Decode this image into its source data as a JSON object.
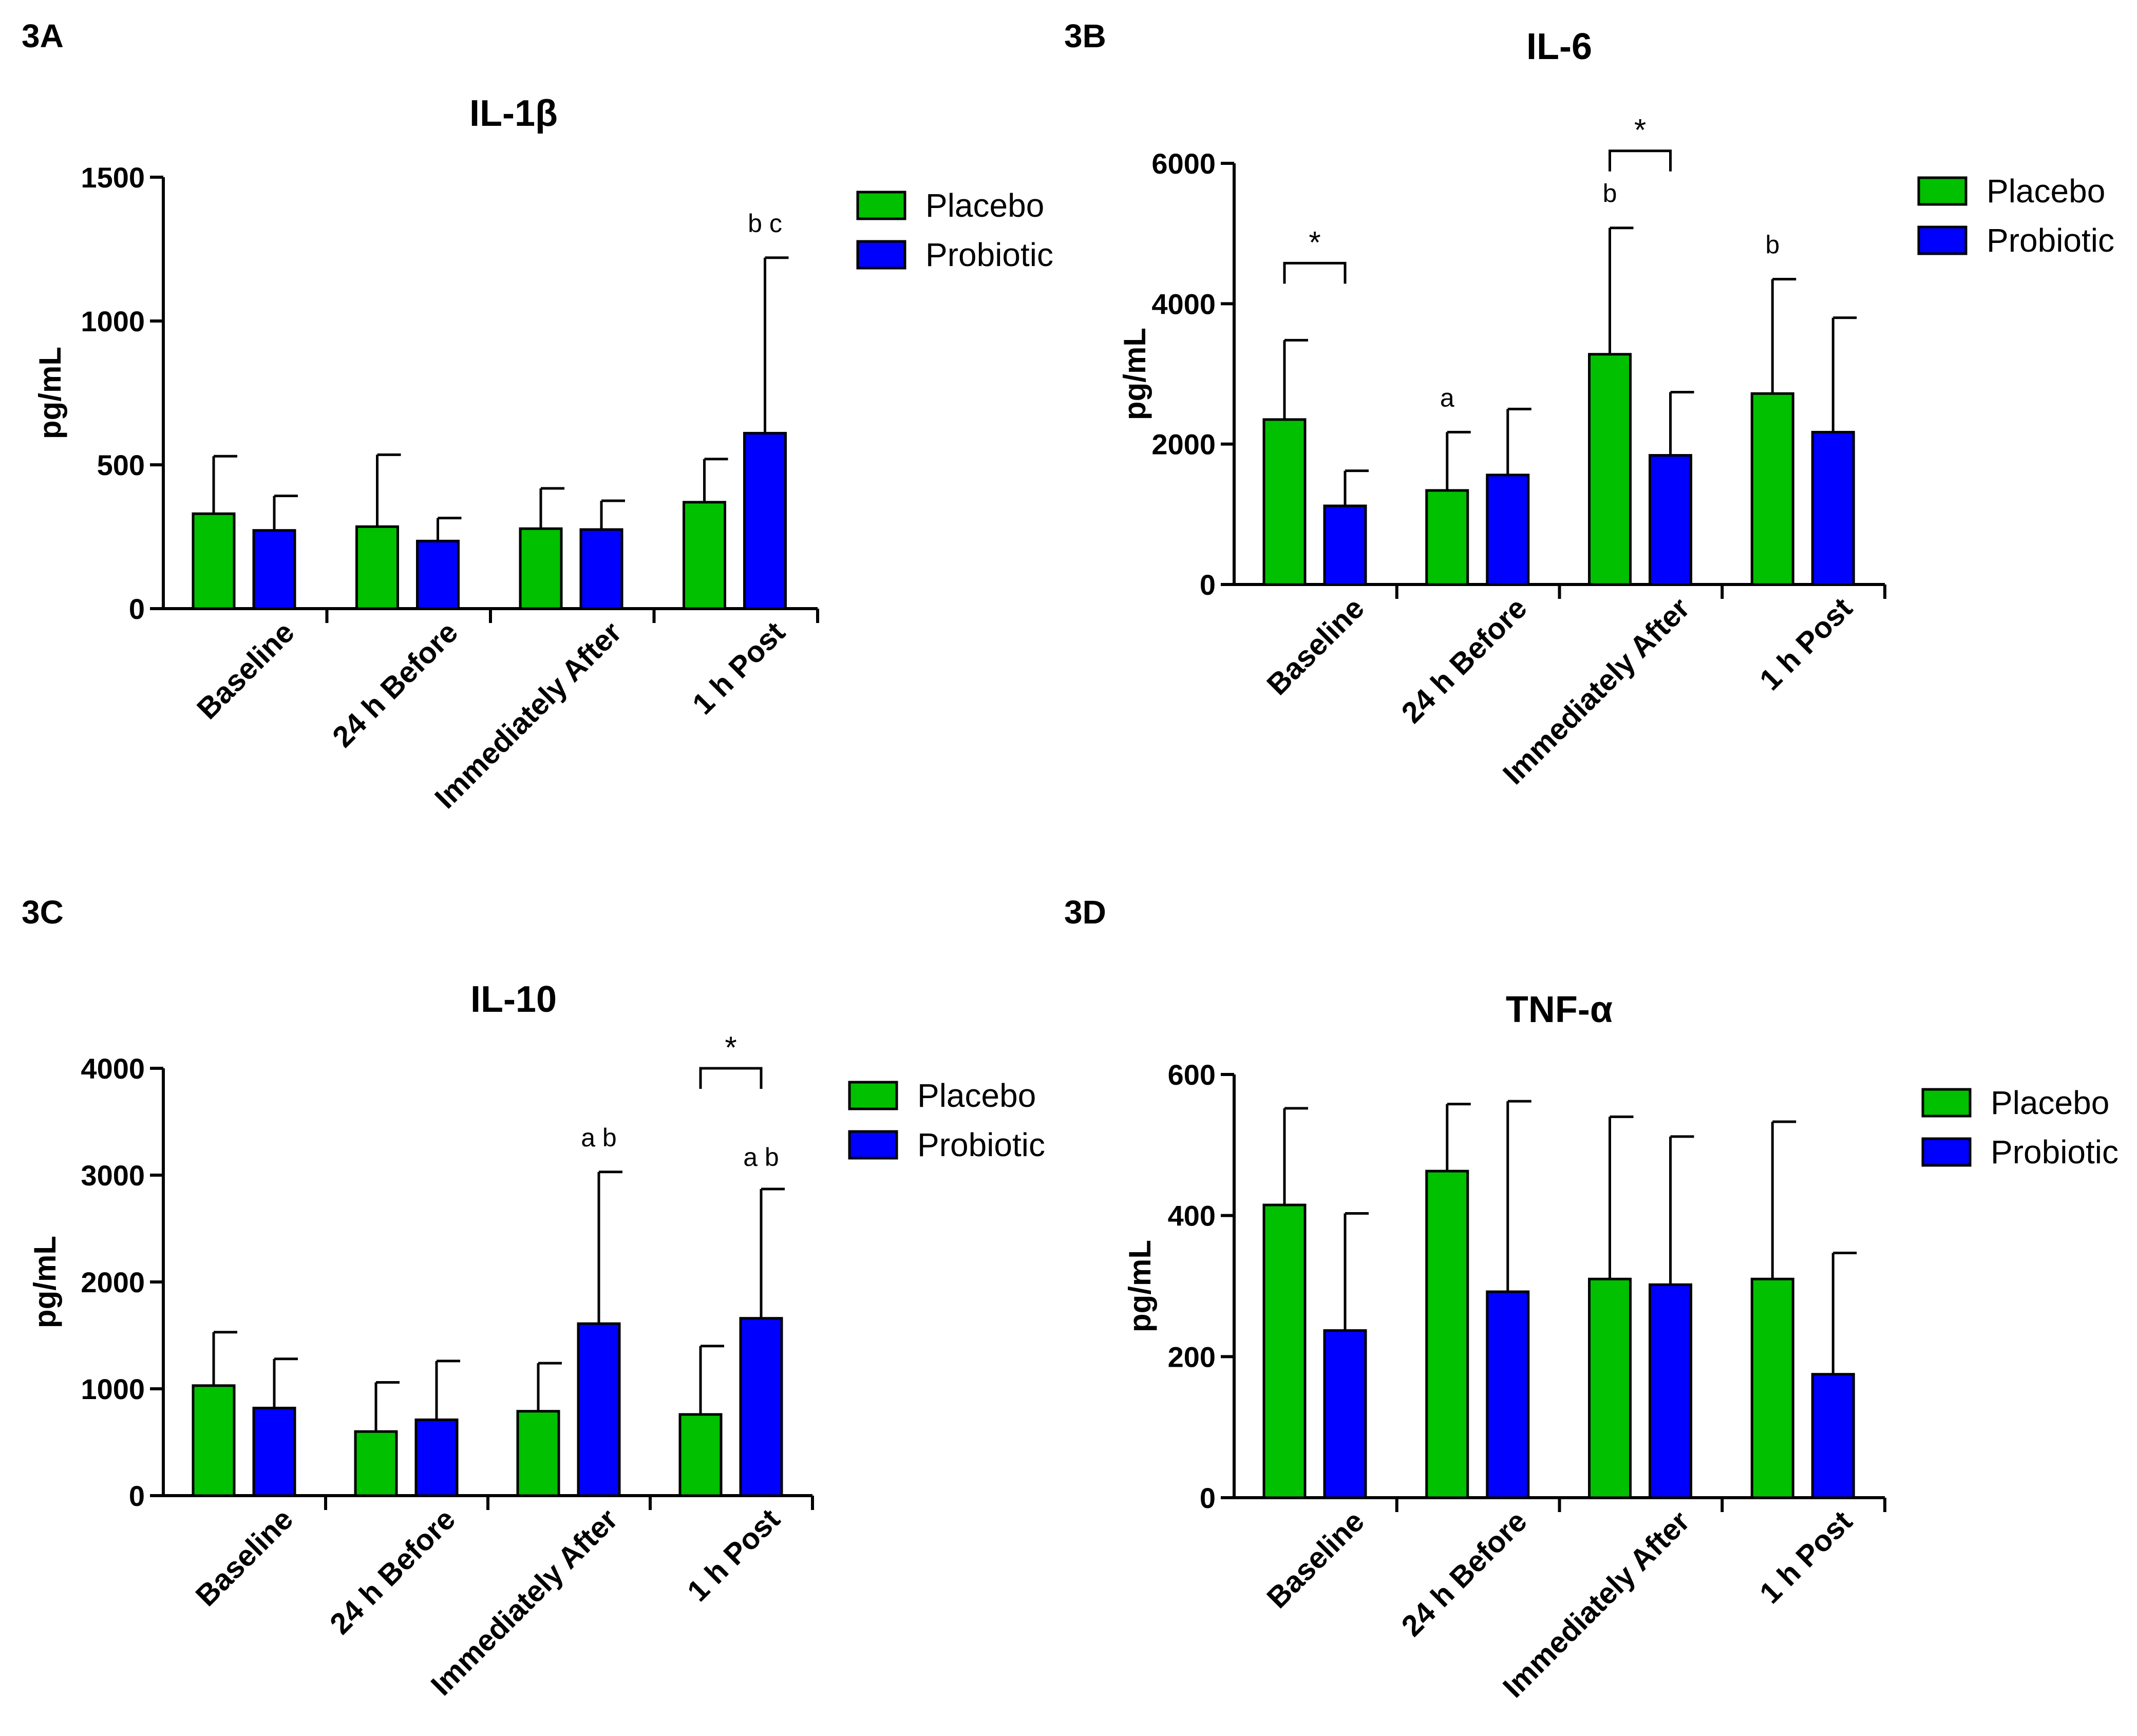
{
  "colors": {
    "placebo": "#00c000",
    "probiotic": "#0000ff",
    "axis": "#000000"
  },
  "chart_data": [
    {
      "panel": "3A",
      "type": "bar",
      "title": "IL-1β",
      "ylabel": "pg/mL",
      "ylim": [
        0,
        1500
      ],
      "yticks": [
        "0",
        "500",
        "1000",
        "1500"
      ],
      "categories": [
        "Baseline",
        "24 h Before",
        "Immediately After",
        "1 h Post"
      ],
      "series": [
        {
          "name": "Placebo",
          "values": [
            330,
            285,
            278,
            370
          ],
          "errors": [
            200,
            250,
            140,
            150
          ]
        },
        {
          "name": "Probiotic",
          "values": [
            272,
            235,
            275,
            610
          ],
          "errors": [
            120,
            80,
            100,
            610
          ]
        }
      ],
      "legend": [
        "Placebo",
        "Probiotic"
      ],
      "annotations": [
        {
          "category": 3,
          "series": 1,
          "text": "b c"
        }
      ],
      "brackets": []
    },
    {
      "panel": "3B",
      "type": "bar",
      "title": "IL-6",
      "ylabel": "pg/mL",
      "ylim": [
        0,
        6000
      ],
      "yticks": [
        "0",
        "2000",
        "4000",
        "6000"
      ],
      "categories": [
        "Baseline",
        "24 h Before",
        "Immediately After",
        "1 h Post"
      ],
      "series": [
        {
          "name": "Placebo",
          "values": [
            2350,
            1340,
            3280,
            2720
          ],
          "errors": [
            1130,
            830,
            1800,
            1630
          ]
        },
        {
          "name": "Probiotic",
          "values": [
            1120,
            1560,
            1840,
            2170
          ],
          "errors": [
            500,
            940,
            900,
            1630
          ]
        }
      ],
      "legend": [
        "Placebo",
        "Probiotic"
      ],
      "annotations": [
        {
          "category": 1,
          "series": 0,
          "text": "a"
        },
        {
          "category": 2,
          "series": 0,
          "text": "b"
        },
        {
          "category": 3,
          "series": 0,
          "text": "b"
        }
      ],
      "brackets": [
        {
          "category": 0,
          "text": "*"
        },
        {
          "category": 2,
          "text": "*"
        }
      ]
    },
    {
      "panel": "3C",
      "type": "bar",
      "title": "IL-10",
      "ylabel": "pg/mL",
      "ylim": [
        0,
        4000
      ],
      "yticks": [
        "0",
        "1000",
        "2000",
        "3000",
        "4000"
      ],
      "categories": [
        "Baseline",
        "24 h Before",
        "Immediately After",
        "1 h Post"
      ],
      "series": [
        {
          "name": "Placebo",
          "values": [
            1030,
            600,
            790,
            760
          ],
          "errors": [
            500,
            460,
            450,
            640
          ]
        },
        {
          "name": "Probiotic",
          "values": [
            820,
            710,
            1610,
            1660
          ],
          "errors": [
            460,
            550,
            1420,
            1210
          ]
        }
      ],
      "legend": [
        "Placebo",
        "Probiotic"
      ],
      "annotations": [
        {
          "category": 2,
          "series": 1,
          "text": "a b"
        },
        {
          "category": 3,
          "series": 1,
          "text": "a b"
        }
      ],
      "brackets": [
        {
          "category": 3,
          "text": "*"
        }
      ]
    },
    {
      "panel": "3D",
      "type": "bar",
      "title": "TNF-α",
      "ylabel": "pg/mL",
      "ylim": [
        0,
        600
      ],
      "yticks": [
        "0",
        "200",
        "400",
        "600"
      ],
      "categories": [
        "Baseline",
        "24 h Before",
        "Immediately After",
        "1 h Post"
      ],
      "series": [
        {
          "name": "Placebo",
          "values": [
            415,
            463,
            310,
            310
          ],
          "errors": [
            137,
            95,
            230,
            223
          ]
        },
        {
          "name": "Probiotic",
          "values": [
            237,
            292,
            302,
            175
          ],
          "errors": [
            166,
            270,
            210,
            172
          ]
        }
      ],
      "legend": [
        "Placebo",
        "Probiotic"
      ],
      "annotations": [],
      "brackets": []
    }
  ]
}
